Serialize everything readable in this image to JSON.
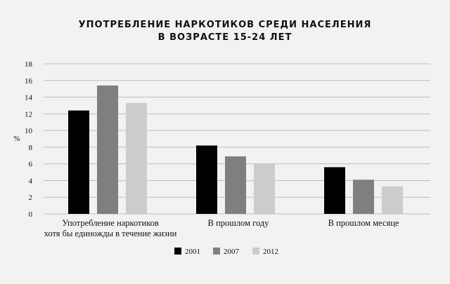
{
  "chart_data": {
    "type": "bar",
    "title_lines": [
      "УПОТРЕБЛЕНИЕ НАРКОТИКОВ СРЕДИ НАСЕЛЕНИЯ",
      "В ВОЗРАСТЕ 15-24 ЛЕТ"
    ],
    "ylabel": "%",
    "xlabel": "",
    "ylim": [
      0,
      18
    ],
    "yticks": [
      0,
      2,
      4,
      6,
      8,
      10,
      12,
      14,
      16,
      18
    ],
    "grid": true,
    "legend_position": "bottom",
    "categories": [
      [
        "Употребление наркотиков",
        "хотя бы единожды в течение жизни"
      ],
      [
        "В прошлом году"
      ],
      [
        "В прошлом месяце"
      ]
    ],
    "series": [
      {
        "name": "2001",
        "color": "#000000",
        "values": [
          12.4,
          8.2,
          5.6
        ]
      },
      {
        "name": "2007",
        "color": "#7f7f7f",
        "values": [
          15.4,
          6.9,
          4.1
        ]
      },
      {
        "name": "2012",
        "color": "#cccccc",
        "values": [
          13.3,
          6.0,
          3.3
        ]
      }
    ]
  }
}
